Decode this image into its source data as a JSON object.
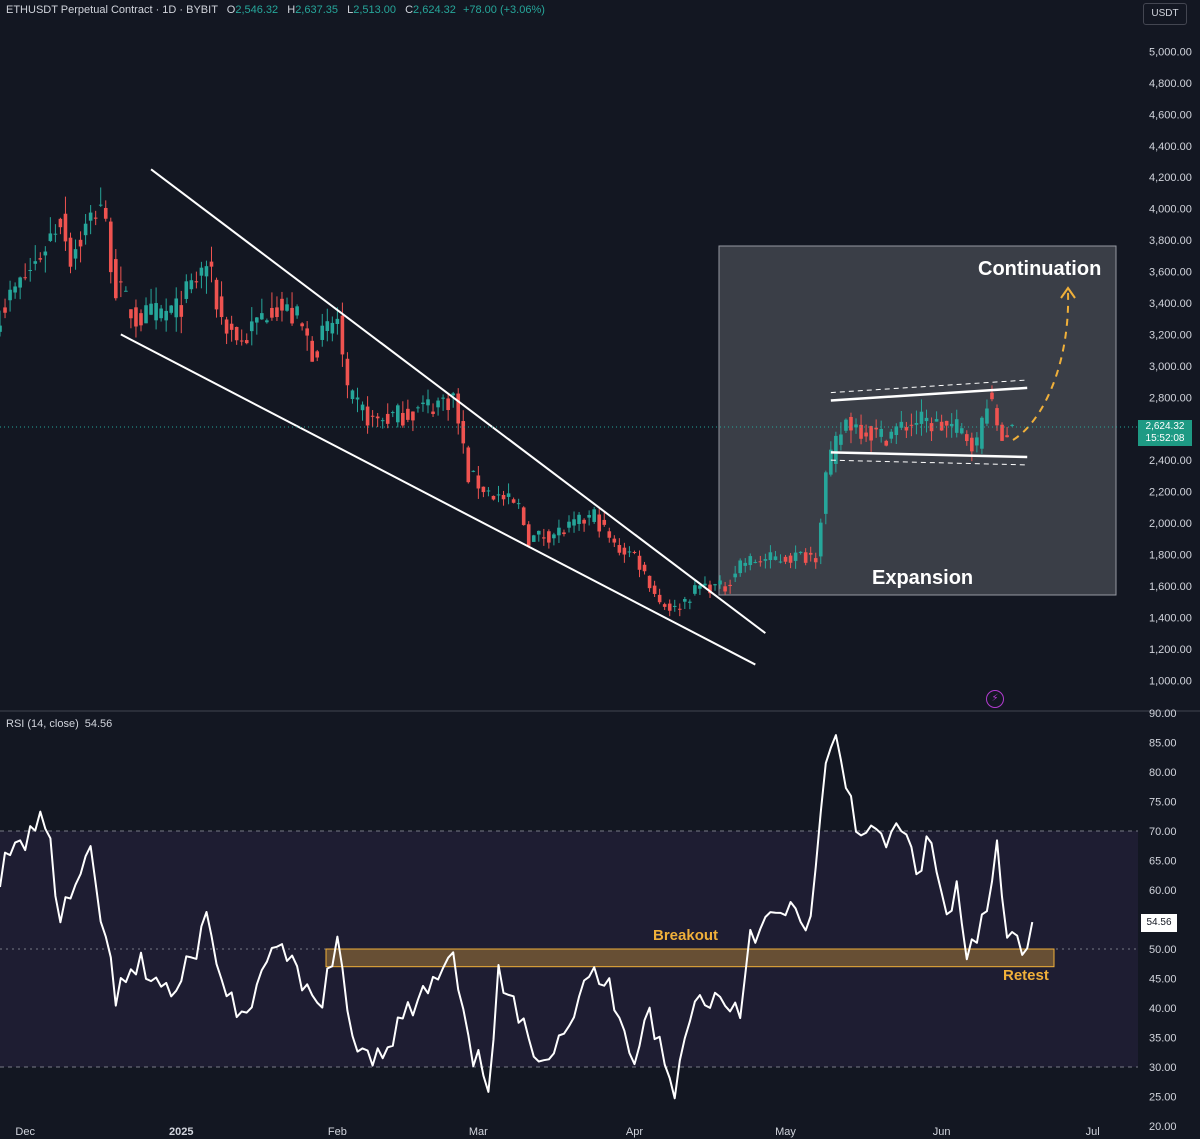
{
  "header": {
    "symbol": "ETHUSDT Perpetual Contract · 1D · BYBIT",
    "open_label": "O",
    "open": "2,546.32",
    "high_label": "H",
    "high": "2,637.35",
    "low_label": "L",
    "low": "2,513.00",
    "close_label": "C",
    "close": "2,624.32",
    "change": "+78.00 (+3.06%)"
  },
  "currency": "USDT",
  "price_tag": {
    "price": "2,624.32",
    "countdown": "15:52:08"
  },
  "rsi": {
    "label": "RSI (14, close)",
    "value": "54.56"
  },
  "annotations": {
    "continuation": "Continuation",
    "expansion": "Expansion",
    "breakout": "Breakout",
    "retest": "Retest"
  },
  "colors": {
    "background": "#131722",
    "up": "#26a69a",
    "down": "#ef5350",
    "rsi_line": "#ffffff",
    "zone": "#f0b03a",
    "annotation": "#f0b03a",
    "price_tag": "#1e9a84",
    "alert_icon": "#b23bd0"
  },
  "icons": {
    "alert": "lightning-alert-icon"
  },
  "chart_data": [
    {
      "type": "candlestick",
      "title": "ETHUSDT Perpetual Contract · 1D · BYBIT",
      "y_axis_side": "right",
      "ylim": [
        900,
        5200
      ],
      "yticks": [
        "5,000.00",
        "4,800.00",
        "4,600.00",
        "4,400.00",
        "4,200.00",
        "4,000.00",
        "3,800.00",
        "3,600.00",
        "3,400.00",
        "3,200.00",
        "3,000.00",
        "2,800.00",
        "2,600.00",
        "2,400.00",
        "2,200.00",
        "2,000.00",
        "1,800.00",
        "1,600.00",
        "1,400.00",
        "1,200.00",
        "1,000.00"
      ],
      "xticks": [
        "Dec",
        "2025",
        "Feb",
        "Mar",
        "Apr",
        "May",
        "Jun",
        "Jul"
      ],
      "xlim": [
        "2024-11-26",
        "2025-07-10"
      ],
      "anchors": [
        [
          "2024-11-26",
          3350
        ],
        [
          "2024-12-03",
          3650
        ],
        [
          "2024-12-08",
          3950
        ],
        [
          "2024-12-10",
          3700
        ],
        [
          "2024-12-16",
          4050
        ],
        [
          "2024-12-19",
          3500
        ],
        [
          "2024-12-23",
          3300
        ],
        [
          "2024-12-31",
          3350
        ],
        [
          "2025-01-06",
          3650
        ],
        [
          "2025-01-09",
          3300
        ],
        [
          "2025-01-13",
          3150
        ],
        [
          "2025-01-19",
          3400
        ],
        [
          "2025-01-24",
          3300
        ],
        [
          "2025-01-27",
          3100
        ],
        [
          "2025-02-01",
          3300
        ],
        [
          "2025-02-03",
          2800
        ],
        [
          "2025-02-08",
          2650
        ],
        [
          "2025-02-15",
          2700
        ],
        [
          "2025-02-24",
          2800
        ],
        [
          "2025-02-27",
          2300
        ],
        [
          "2025-03-03",
          2200
        ],
        [
          "2025-03-09",
          2100
        ],
        [
          "2025-03-11",
          1900
        ],
        [
          "2025-03-18",
          1950
        ],
        [
          "2025-03-24",
          2050
        ],
        [
          "2025-03-28",
          1850
        ],
        [
          "2025-04-01",
          1800
        ],
        [
          "2025-04-06",
          1500
        ],
        [
          "2025-04-09",
          1450
        ],
        [
          "2025-04-14",
          1600
        ],
        [
          "2025-04-19",
          1590
        ],
        [
          "2025-04-22",
          1750
        ],
        [
          "2025-05-07",
          1800
        ],
        [
          "2025-05-09",
          2300
        ],
        [
          "2025-05-11",
          2500
        ],
        [
          "2025-05-13",
          2650
        ],
        [
          "2025-05-20",
          2550
        ],
        [
          "2025-05-27",
          2650
        ],
        [
          "2025-06-04",
          2600
        ],
        [
          "2025-06-08",
          2500
        ],
        [
          "2025-06-10",
          2800
        ],
        [
          "2025-06-13",
          2550
        ],
        [
          "2025-06-15",
          2624
        ]
      ],
      "close_last": 2624.32,
      "patterns": [
        {
          "name": "falling-wedge-upper",
          "from": [
            "2024-12-26",
            4250
          ],
          "to": [
            "2025-04-27",
            1300
          ]
        },
        {
          "name": "falling-wedge-lower",
          "from": [
            "2024-12-20",
            3200
          ],
          "to": [
            "2025-04-25",
            1100
          ]
        },
        {
          "name": "channel-upper",
          "from": [
            "2025-05-10",
            2780
          ],
          "to": [
            "2025-06-18",
            2860
          ]
        },
        {
          "name": "channel-lower",
          "from": [
            "2025-05-10",
            2450
          ],
          "to": [
            "2025-06-18",
            2420
          ]
        }
      ]
    },
    {
      "type": "line",
      "title": "RSI (14, close)",
      "ylim": [
        20,
        90
      ],
      "yticks": [
        "90.00",
        "85.00",
        "80.00",
        "75.00",
        "70.00",
        "65.00",
        "60.00",
        "55.00",
        "50.00",
        "45.00",
        "40.00",
        "35.00",
        "30.00",
        "25.00",
        "20.00"
      ],
      "bands": [
        70,
        30
      ],
      "zone": [
        47,
        50
      ],
      "last": 54.56,
      "anchors": [
        [
          "2024-11-26",
          63
        ],
        [
          "2024-12-02",
          70
        ],
        [
          "2024-12-05",
          72
        ],
        [
          "2024-12-08",
          55
        ],
        [
          "2024-12-12",
          62
        ],
        [
          "2024-12-14",
          65
        ],
        [
          "2024-12-19",
          42
        ],
        [
          "2024-12-24",
          47
        ],
        [
          "2024-12-31",
          42
        ],
        [
          "2025-01-06",
          55
        ],
        [
          "2025-01-10",
          42
        ],
        [
          "2025-01-15",
          38
        ],
        [
          "2025-01-19",
          52
        ],
        [
          "2025-01-24",
          45
        ],
        [
          "2025-01-28",
          40
        ],
        [
          "2025-02-01",
          50
        ],
        [
          "2025-02-04",
          35
        ],
        [
          "2025-02-09",
          32
        ],
        [
          "2025-02-14",
          38
        ],
        [
          "2025-02-19",
          43
        ],
        [
          "2025-02-24",
          48
        ],
        [
          "2025-02-27",
          33
        ],
        [
          "2025-03-03",
          28
        ],
        [
          "2025-03-05",
          45
        ],
        [
          "2025-03-10",
          36
        ],
        [
          "2025-03-14",
          32
        ],
        [
          "2025-03-19",
          38
        ],
        [
          "2025-03-24",
          46
        ],
        [
          "2025-03-28",
          42
        ],
        [
          "2025-04-01",
          32
        ],
        [
          "2025-04-04",
          40
        ],
        [
          "2025-04-07",
          30
        ],
        [
          "2025-04-09",
          25
        ],
        [
          "2025-04-12",
          40
        ],
        [
          "2025-04-16",
          42
        ],
        [
          "2025-04-22",
          40
        ],
        [
          "2025-04-24",
          53
        ],
        [
          "2025-05-01",
          56
        ],
        [
          "2025-05-06",
          55
        ],
        [
          "2025-05-09",
          80
        ],
        [
          "2025-05-11",
          85
        ],
        [
          "2025-05-15",
          72
        ],
        [
          "2025-05-19",
          68
        ],
        [
          "2025-05-24",
          70
        ],
        [
          "2025-05-27",
          64
        ],
        [
          "2025-05-30",
          68
        ],
        [
          "2025-06-02",
          55
        ],
        [
          "2025-06-04",
          60
        ],
        [
          "2025-06-06",
          47
        ],
        [
          "2025-06-10",
          57
        ],
        [
          "2025-06-12",
          66
        ],
        [
          "2025-06-14",
          52
        ],
        [
          "2025-06-17",
          50
        ],
        [
          "2025-06-19",
          54.56
        ]
      ]
    }
  ]
}
